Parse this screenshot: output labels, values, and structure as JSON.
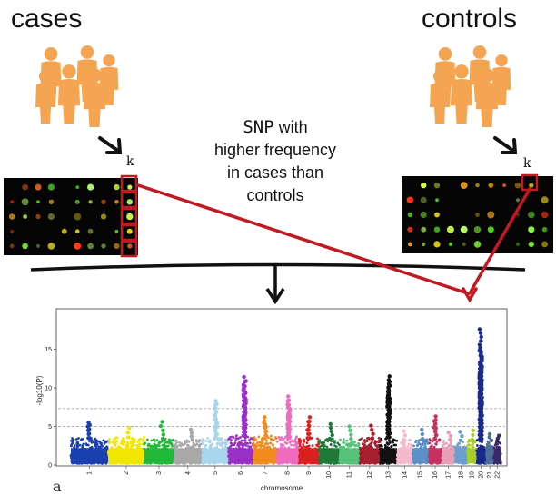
{
  "labels": {
    "cases": "cases",
    "controls": "controls",
    "snp_line1_term": "SNP",
    "snp_line1_rest": " with",
    "snp_line2": "higher frequency",
    "snp_line3": "in cases than",
    "snp_line4": "controls",
    "k_left": "k",
    "k_right": "k",
    "panel_letter": "a"
  },
  "colors": {
    "people": "#f5a552",
    "highlight": "#c01a22",
    "arrow_black": "#111111",
    "plot_frame": "#666666"
  },
  "chart_data": {
    "type": "scatter",
    "title": "",
    "xlabel": "chromosome",
    "ylabel": "-log10(P)",
    "ylim": [
      0,
      20
    ],
    "yticks": [
      0,
      5,
      10,
      15
    ],
    "significance_lines": [
      5,
      7.3
    ],
    "chromosomes": [
      "1",
      "2",
      "3",
      "4",
      "5",
      "6",
      "7",
      "8",
      "9",
      "10",
      "11",
      "12",
      "13",
      "14",
      "15",
      "16",
      "17",
      "18",
      "19",
      "20",
      "21",
      "22"
    ],
    "series": [
      {
        "chr": "1",
        "color": "#1a3fb0",
        "base_max": 3.5,
        "peaks": [
          {
            "y": 5.5
          },
          {
            "y": 5.2
          }
        ]
      },
      {
        "chr": "2",
        "color": "#f2e600",
        "base_max": 3.6,
        "peaks": [
          {
            "y": 4.8
          }
        ]
      },
      {
        "chr": "3",
        "color": "#22b83a",
        "base_max": 3.4,
        "peaks": [
          {
            "y": 5.6
          }
        ]
      },
      {
        "chr": "4",
        "color": "#a8a8a8",
        "base_max": 3.3,
        "peaks": [
          {
            "y": 4.6
          }
        ]
      },
      {
        "chr": "5",
        "color": "#a8d4ec",
        "base_max": 3.5,
        "peaks": [
          {
            "y": 8.3
          },
          {
            "y": 7.9
          },
          {
            "y": 5.4
          }
        ]
      },
      {
        "chr": "6",
        "color": "#9b30c8",
        "base_max": 3.8,
        "peaks": [
          {
            "y": 11.4
          },
          {
            "y": 10.8
          },
          {
            "y": 10.2
          },
          {
            "y": 9.6
          },
          {
            "y": 8.5
          },
          {
            "y": 7.6
          }
        ]
      },
      {
        "chr": "7",
        "color": "#f28a1e",
        "base_max": 3.8,
        "peaks": [
          {
            "y": 6.2
          },
          {
            "y": 5.5
          }
        ]
      },
      {
        "chr": "8",
        "color": "#f06bc0",
        "base_max": 3.7,
        "peaks": [
          {
            "y": 8.9
          },
          {
            "y": 8.3
          },
          {
            "y": 7.5
          },
          {
            "y": 6.6
          },
          {
            "y": 5.8
          }
        ]
      },
      {
        "chr": "9",
        "color": "#dd1f1f",
        "base_max": 3.5,
        "peaks": [
          {
            "y": 6.2
          },
          {
            "y": 5.6
          }
        ]
      },
      {
        "chr": "10",
        "color": "#1f7a3a",
        "base_max": 3.4,
        "peaks": [
          {
            "y": 5.3
          }
        ]
      },
      {
        "chr": "11",
        "color": "#55c47a",
        "base_max": 3.4,
        "peaks": [
          {
            "y": 5.0
          }
        ]
      },
      {
        "chr": "12",
        "color": "#a82030",
        "base_max": 3.5,
        "peaks": [
          {
            "y": 5.1
          }
        ]
      },
      {
        "chr": "13",
        "color": "#111111",
        "base_max": 3.6,
        "peaks": [
          {
            "y": 11.5
          },
          {
            "y": 10.8
          },
          {
            "y": 10.1
          },
          {
            "y": 9.4
          },
          {
            "y": 8.2
          },
          {
            "y": 6.8
          }
        ]
      },
      {
        "chr": "14",
        "color": "#f5b8cc",
        "base_max": 3.3,
        "peaks": [
          {
            "y": 4.4
          }
        ]
      },
      {
        "chr": "15",
        "color": "#5a8fc8",
        "base_max": 3.4,
        "peaks": [
          {
            "y": 4.6
          }
        ]
      },
      {
        "chr": "16",
        "color": "#c83060",
        "base_max": 3.4,
        "peaks": [
          {
            "y": 6.3
          },
          {
            "y": 5.7
          }
        ]
      },
      {
        "chr": "17",
        "color": "#e8a0b8",
        "base_max": 3.3,
        "peaks": [
          {
            "y": 4.2
          }
        ]
      },
      {
        "chr": "18",
        "color": "#6aa0d0",
        "base_max": 3.2,
        "peaks": [
          {
            "y": 4.3
          }
        ]
      },
      {
        "chr": "19",
        "color": "#aacd2a",
        "base_max": 3.3,
        "peaks": [
          {
            "y": 4.5
          }
        ]
      },
      {
        "chr": "20",
        "color": "#1a2a8c",
        "base_max": 3.4,
        "peaks": [
          {
            "y": 17.6
          },
          {
            "y": 15.2
          },
          {
            "y": 14.8
          },
          {
            "y": 14.0
          },
          {
            "y": 12.5
          },
          {
            "y": 11.2
          },
          {
            "y": 10.2
          },
          {
            "y": 9.2
          },
          {
            "y": 8.1
          }
        ]
      },
      {
        "chr": "21",
        "color": "#4e6f9a",
        "base_max": 3.2,
        "peaks": [
          {
            "y": 4.0
          }
        ]
      },
      {
        "chr": "22",
        "color": "#3a2a6a",
        "base_max": 3.1,
        "peaks": [
          {
            "y": 3.8
          }
        ]
      }
    ]
  }
}
